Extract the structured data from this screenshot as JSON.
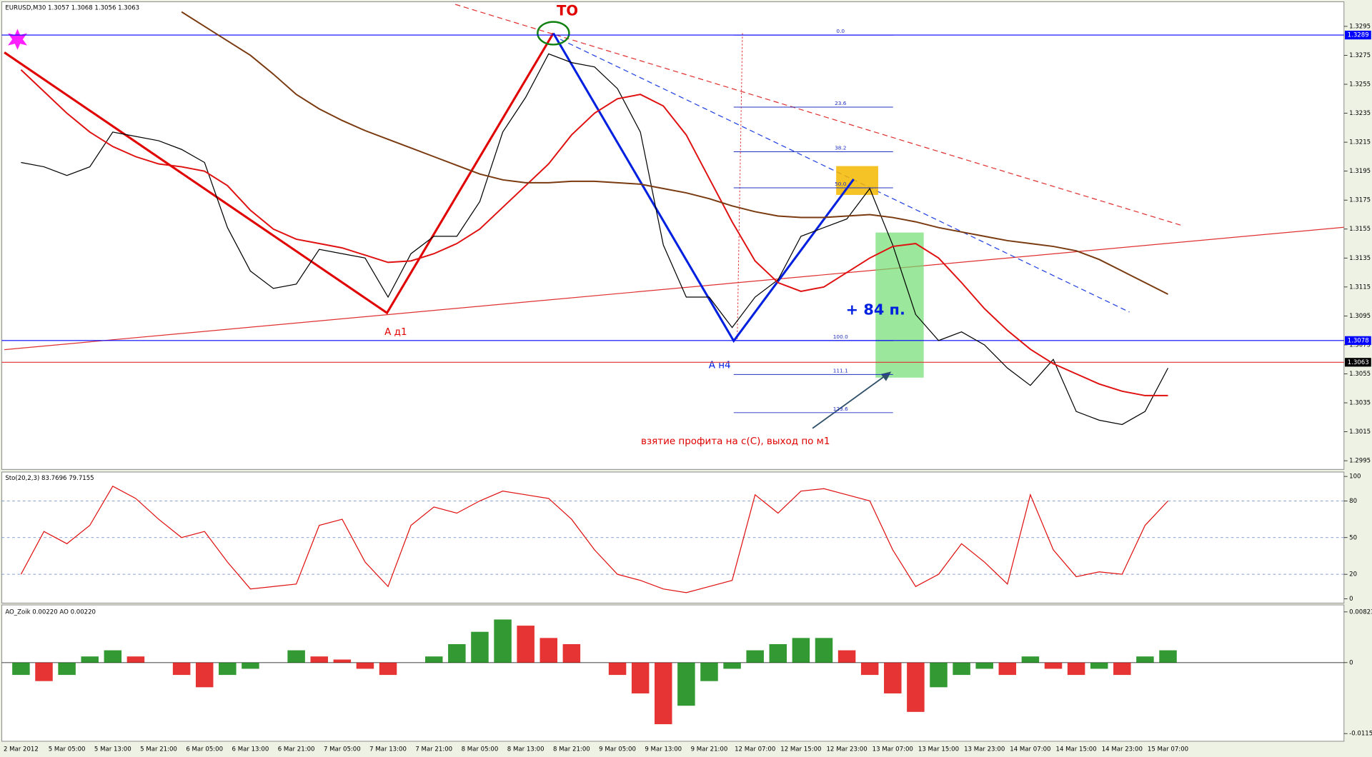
{
  "chart_data": [
    {
      "type": "line",
      "title": "EURUSD,M30  1.3057 1.3068 1.3056 1.3063",
      "ylim": [
        1.2989,
        1.3312
      ],
      "yticks": [
        1.3295,
        1.3275,
        1.3255,
        1.3235,
        1.3215,
        1.3195,
        1.3175,
        1.3155,
        1.3135,
        1.3115,
        1.3095,
        1.3075,
        1.3055,
        1.3035,
        1.3015,
        1.2995
      ],
      "series": [
        {
          "color": "#000000",
          "values": [
            1.3201,
            1.3198,
            1.3192,
            1.3198,
            1.3222,
            1.3219,
            1.3216,
            1.321,
            1.3201,
            1.3156,
            1.3126,
            1.3114,
            1.3117,
            1.3141,
            1.3138,
            1.3135,
            1.3108,
            1.3138,
            1.315,
            1.315,
            1.3174,
            1.3222,
            1.3246,
            1.3276,
            1.327,
            1.3267,
            1.3252,
            1.3222,
            1.3144,
            1.3108,
            1.3108,
            1.3087,
            1.3108,
            1.312,
            1.315,
            1.3156,
            1.3162,
            1.3183,
            1.3144,
            1.3096,
            1.3078,
            1.3084,
            1.3075,
            1.3059,
            1.3047,
            1.3065,
            1.3029,
            1.3023,
            1.302,
            1.3029,
            1.3059
          ]
        },
        {
          "color": "#e01010",
          "values": [
            1.3265,
            1.325,
            1.3235,
            1.3222,
            1.3212,
            1.3205,
            1.32,
            1.3198,
            1.3195,
            1.3185,
            1.3168,
            1.3155,
            1.3148,
            1.3145,
            1.3142,
            1.3137,
            1.3132,
            1.3133,
            1.3138,
            1.3145,
            1.3155,
            1.317,
            1.3185,
            1.32,
            1.322,
            1.3235,
            1.3245,
            1.3248,
            1.324,
            1.322,
            1.319,
            1.316,
            1.3133,
            1.3118,
            1.3112,
            1.3115,
            1.3125,
            1.3135,
            1.3143,
            1.3145,
            1.3135,
            1.3118,
            1.31,
            1.3085,
            1.3072,
            1.3062,
            1.3055,
            1.3048,
            1.3043,
            1.304,
            1.304
          ]
        },
        {
          "color": "#7a3a10",
          "values": [
            null,
            null,
            null,
            null,
            null,
            null,
            null,
            1.3305,
            1.3295,
            1.3285,
            1.3275,
            1.3262,
            1.3248,
            1.3238,
            1.323,
            1.3223,
            1.3217,
            1.3211,
            1.3205,
            1.3199,
            1.3193,
            1.3189,
            1.3187,
            1.3187,
            1.3188,
            1.3188,
            1.3187,
            1.3186,
            1.3183,
            1.318,
            1.3176,
            1.3171,
            1.3167,
            1.3164,
            1.3163,
            1.3163,
            1.3164,
            1.3165,
            1.3163,
            1.316,
            1.3156,
            1.3153,
            1.315,
            1.3147,
            1.3145,
            1.3143,
            1.314,
            1.3134,
            1.3126,
            1.3118,
            1.311
          ]
        }
      ],
      "hlines": [
        {
          "value": 1.3289,
          "color": "#0000ff"
        },
        {
          "value": 1.3078,
          "color": "#0000ff"
        },
        {
          "value": 1.3063,
          "color": "#000000"
        }
      ],
      "fib": {
        "from": 1.3289,
        "to": 1.3078,
        "levels": [
          {
            "value": 0,
            "label": "0.0"
          },
          23.6,
          38.2,
          {
            "value": 50,
            "label": "50.0"
          },
          {
            "value": 100,
            "label": "100.0"
          },
          111.1,
          123.6
        ]
      },
      "annotations": [
        "TO",
        "A д1",
        "A н4",
        "+ 84 п.",
        "взятие профита на с(С), выход по м1"
      ]
    },
    {
      "type": "line",
      "title": "Sto(20,2,3) 83.7696 79.7155",
      "ylim": [
        -3.6,
        103.6
      ],
      "yticks": [
        100,
        80,
        50,
        20,
        0
      ],
      "levels": [
        80,
        50,
        20
      ],
      "series": [
        {
          "color": "#e01010",
          "values": [
            20,
            55,
            45,
            60,
            92,
            82,
            65,
            50,
            55,
            30,
            8,
            10,
            12,
            60,
            65,
            30,
            10,
            60,
            75,
            70,
            80,
            88,
            85,
            82,
            65,
            40,
            20,
            15,
            8,
            5,
            10,
            15,
            85,
            70,
            88,
            90,
            85,
            80,
            40,
            10,
            20,
            45,
            30,
            12,
            85,
            40,
            18,
            22,
            20,
            60,
            80
          ]
        }
      ]
    },
    {
      "type": "bar",
      "title": "AO_Zoik 0.00220  AO 0.00220",
      "ylim": [
        -0.01277,
        0.00937
      ],
      "yticks": [
        0.00823,
        0,
        -0.01152
      ],
      "up_color": "#008000",
      "down_color": "#e00000",
      "values": [
        -0.002,
        -0.003,
        -0.002,
        0.001,
        0.002,
        0.001,
        0,
        -0.002,
        -0.004,
        -0.002,
        -0.001,
        0,
        0.002,
        0.001,
        0.0005,
        -0.001,
        -0.002,
        0,
        0.001,
        0.003,
        0.005,
        0.007,
        0.006,
        0.004,
        0.003,
        0,
        -0.002,
        -0.005,
        -0.01,
        -0.007,
        -0.003,
        -0.001,
        0.002,
        0.003,
        0.004,
        0.004,
        0.002,
        -0.002,
        -0.005,
        -0.008,
        -0.004,
        -0.002,
        -0.001,
        -0.002,
        0.001,
        -0.001,
        -0.002,
        -0.001,
        -0.002,
        0.001,
        0.002
      ],
      "categories": [
        "2 Mar 2012",
        null,
        "5 Mar 05:00",
        null,
        "5 Mar 13:00",
        null,
        "5 Mar 21:00",
        null,
        "6 Mar 05:00",
        null,
        "6 Mar 13:00",
        null,
        "6 Mar 21:00",
        null,
        "7 Mar 05:00",
        null,
        "7 Mar 13:00",
        null,
        "7 Mar 21:00",
        null,
        "8 Mar 05:00",
        null,
        "8 Mar 13:00",
        null,
        "8 Mar 21:00",
        null,
        "9 Mar 05:00",
        null,
        "9 Mar 13:00",
        null,
        "9 Mar 21:00",
        null,
        "12 Mar 07:00",
        null,
        "12 Mar 15:00",
        null,
        "12 Mar 23:00",
        null,
        "13 Mar 07:00",
        null,
        "13 Mar 15:00",
        null,
        "13 Mar 23:00",
        null,
        "14 Mar 07:00",
        null,
        "14 Mar 15:00",
        null,
        "14 Mar 23:00",
        null,
        "15 Mar 07:00"
      ]
    }
  ]
}
